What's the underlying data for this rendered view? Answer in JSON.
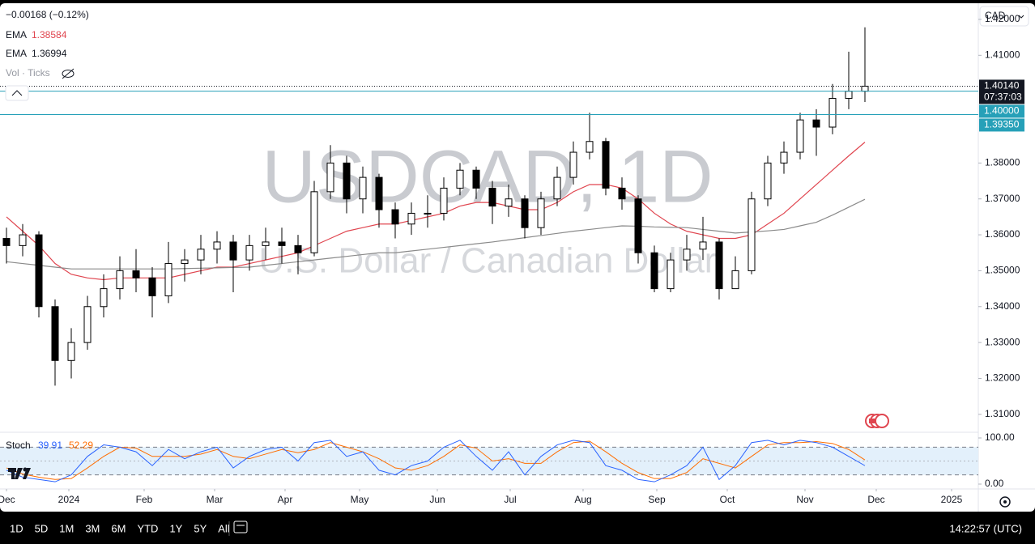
{
  "chart_data": {
    "type": "candlestick",
    "title": "USDCAD, 1D",
    "subtitle": "U.S. Dollar / Canadian Dollar",
    "change": "−0.00168 (−0.12%)",
    "currency": "CAD",
    "ohlc": {
      "open": [
        1.359,
        1.357,
        1.36,
        1.34,
        1.325,
        1.33,
        1.34,
        1.345,
        1.35,
        1.348,
        1.343,
        1.352,
        1.353,
        1.356,
        1.358,
        1.353,
        1.357,
        1.358,
        1.357,
        1.355,
        1.372,
        1.38,
        1.37,
        1.376,
        1.367,
        1.363,
        1.366,
        1.366,
        1.373,
        1.378,
        1.373,
        1.368,
        1.37,
        1.362,
        1.37,
        1.376,
        1.383,
        1.386,
        1.373,
        1.37,
        1.355,
        1.345,
        1.353,
        1.356,
        1.358,
        1.345,
        1.35,
        1.37,
        1.38,
        1.383,
        1.392,
        1.39,
        1.398,
        1.4
      ],
      "high": [
        1.362,
        1.363,
        1.361,
        1.342,
        1.334,
        1.343,
        1.349,
        1.354,
        1.356,
        1.351,
        1.358,
        1.356,
        1.36,
        1.361,
        1.36,
        1.36,
        1.362,
        1.362,
        1.36,
        1.375,
        1.385,
        1.382,
        1.379,
        1.377,
        1.369,
        1.369,
        1.371,
        1.376,
        1.38,
        1.379,
        1.375,
        1.374,
        1.371,
        1.372,
        1.379,
        1.386,
        1.394,
        1.387,
        1.376,
        1.371,
        1.357,
        1.355,
        1.36,
        1.365,
        1.359,
        1.354,
        1.372,
        1.382,
        1.386,
        1.394,
        1.395,
        1.402,
        1.411,
        1.4178
      ],
      "low": [
        1.352,
        1.354,
        1.337,
        1.318,
        1.32,
        1.328,
        1.337,
        1.342,
        1.344,
        1.337,
        1.341,
        1.347,
        1.349,
        1.352,
        1.344,
        1.35,
        1.353,
        1.352,
        1.349,
        1.354,
        1.37,
        1.366,
        1.366,
        1.362,
        1.359,
        1.36,
        1.362,
        1.364,
        1.371,
        1.37,
        1.363,
        1.365,
        1.359,
        1.36,
        1.368,
        1.374,
        1.381,
        1.371,
        1.367,
        1.352,
        1.344,
        1.344,
        1.35,
        1.353,
        1.342,
        1.345,
        1.349,
        1.368,
        1.377,
        1.381,
        1.382,
        1.388,
        1.395,
        1.397
      ],
      "close": [
        1.357,
        1.36,
        1.34,
        1.325,
        1.33,
        1.34,
        1.345,
        1.35,
        1.348,
        1.343,
        1.352,
        1.353,
        1.356,
        1.358,
        1.353,
        1.357,
        1.358,
        1.357,
        1.355,
        1.372,
        1.38,
        1.37,
        1.376,
        1.367,
        1.363,
        1.366,
        1.366,
        1.373,
        1.378,
        1.373,
        1.368,
        1.37,
        1.362,
        1.37,
        1.376,
        1.383,
        1.386,
        1.373,
        1.37,
        1.355,
        1.345,
        1.353,
        1.356,
        1.358,
        1.345,
        1.35,
        1.37,
        1.38,
        1.383,
        1.392,
        1.39,
        1.398,
        1.4,
        1.4014
      ]
    },
    "up_color": "#ffffff",
    "down_color": "#000000",
    "series": [
      {
        "name": "EMA",
        "value_label": "1.38584",
        "color": "#e0454f",
        "values": [
          1.365,
          1.361,
          1.357,
          1.352,
          1.349,
          1.348,
          1.3475,
          1.348,
          1.348,
          1.348,
          1.348,
          1.349,
          1.35,
          1.351,
          1.351,
          1.352,
          1.353,
          1.354,
          1.355,
          1.357,
          1.359,
          1.361,
          1.362,
          1.363,
          1.363,
          1.364,
          1.365,
          1.366,
          1.368,
          1.369,
          1.369,
          1.368,
          1.367,
          1.367,
          1.369,
          1.372,
          1.374,
          1.374,
          1.373,
          1.37,
          1.366,
          1.363,
          1.361,
          1.36,
          1.359,
          1.359,
          1.36,
          1.363,
          1.366,
          1.37,
          1.374,
          1.378,
          1.382,
          1.3858
        ]
      },
      {
        "name": "EMA",
        "value_label": "1.36994",
        "color": "#8a8a8a",
        "values": [
          1.3525,
          1.352,
          1.3515,
          1.351,
          1.3505,
          1.3505,
          1.3505,
          1.3505,
          1.3505,
          1.3505,
          1.3505,
          1.3506,
          1.3507,
          1.3508,
          1.3509,
          1.351,
          1.3515,
          1.352,
          1.3525,
          1.353,
          1.3535,
          1.354,
          1.3545,
          1.355,
          1.355,
          1.3555,
          1.356,
          1.3565,
          1.357,
          1.3575,
          1.358,
          1.3586,
          1.3592,
          1.3598,
          1.3604,
          1.361,
          1.3615,
          1.362,
          1.3625,
          1.3624,
          1.3622,
          1.3621,
          1.362,
          1.3615,
          1.361,
          1.3605,
          1.3608,
          1.3611,
          1.3615,
          1.3625,
          1.3635,
          1.3655,
          1.3677,
          1.3699
        ]
      }
    ],
    "volume_label": "Vol · Ticks",
    "ylim": [
      1.305,
      1.4245
    ],
    "yticks": [
      {
        "value": 1.42,
        "label": "1.42000"
      },
      {
        "value": 1.41,
        "label": "1.41000"
      },
      {
        "value": 1.38,
        "label": "1.38000"
      },
      {
        "value": 1.37,
        "label": "1.37000"
      },
      {
        "value": 1.36,
        "label": "1.36000"
      },
      {
        "value": 1.35,
        "label": "1.35000"
      },
      {
        "value": 1.34,
        "label": "1.34000"
      },
      {
        "value": 1.33,
        "label": "1.33000"
      },
      {
        "value": 1.32,
        "label": "1.32000"
      },
      {
        "value": 1.31,
        "label": "1.31000"
      }
    ],
    "price_lines": [
      {
        "value": 1.4014,
        "label": "1.40140",
        "countdown": "07:37:03",
        "color": "#131722",
        "dotted": true
      },
      {
        "value": 1.4,
        "label": "1.40000",
        "color": "#26a0b8"
      },
      {
        "value": 1.3935,
        "label": "1.39350",
        "color": "#26a0b8"
      }
    ],
    "xticks": [
      {
        "value": 0,
        "label": "Dec"
      },
      {
        "value": 3.85,
        "label": "2024"
      },
      {
        "value": 8.5,
        "label": "Feb"
      },
      {
        "value": 12.85,
        "label": "Mar"
      },
      {
        "value": 17.2,
        "label": "Apr"
      },
      {
        "value": 21.8,
        "label": "May"
      },
      {
        "value": 26.6,
        "label": "Jun"
      },
      {
        "value": 31.1,
        "label": "Jul"
      },
      {
        "value": 35.6,
        "label": "Aug"
      },
      {
        "value": 40.15,
        "label": "Sep"
      },
      {
        "value": 44.5,
        "label": "Oct"
      },
      {
        "value": 49.3,
        "label": "Nov"
      },
      {
        "value": 53.7,
        "label": "Dec"
      },
      {
        "value": 58.35,
        "label": "2025"
      }
    ],
    "stochastic": {
      "name": "Stoch",
      "ylim": [
        0,
        100
      ],
      "yticks": [
        {
          "value": 100,
          "label": "100.00"
        },
        {
          "value": 0,
          "label": "0.00"
        }
      ],
      "bands": [
        80,
        20
      ],
      "band_color": "#e3f0fb",
      "series": [
        {
          "name": "39.91",
          "color": "#2962ff",
          "values": [
            30,
            15,
            10,
            5,
            20,
            60,
            85,
            80,
            70,
            40,
            75,
            55,
            70,
            80,
            35,
            60,
            75,
            80,
            50,
            90,
            95,
            60,
            70,
            30,
            20,
            40,
            50,
            80,
            95,
            60,
            30,
            70,
            20,
            60,
            85,
            95,
            90,
            40,
            30,
            10,
            5,
            20,
            40,
            80,
            10,
            40,
            90,
            95,
            85,
            95,
            90,
            80,
            60,
            39.91
          ]
        },
        {
          "name": "52.29",
          "color": "#ff6d00",
          "values": [
            35,
            22,
            15,
            10,
            12,
            35,
            60,
            80,
            78,
            60,
            60,
            60,
            65,
            75,
            60,
            55,
            65,
            75,
            68,
            75,
            90,
            80,
            70,
            55,
            35,
            30,
            40,
            60,
            85,
            78,
            50,
            55,
            45,
            45,
            70,
            90,
            93,
            70,
            45,
            25,
            12,
            12,
            25,
            55,
            45,
            35,
            60,
            85,
            90,
            90,
            92,
            88,
            75,
            52.29
          ]
        }
      ]
    }
  },
  "toolbar": {
    "ranges": [
      "1D",
      "5D",
      "1M",
      "3M",
      "6M",
      "YTD",
      "1Y",
      "5Y",
      "All"
    ],
    "clock": "14:22:57 (UTC)"
  }
}
